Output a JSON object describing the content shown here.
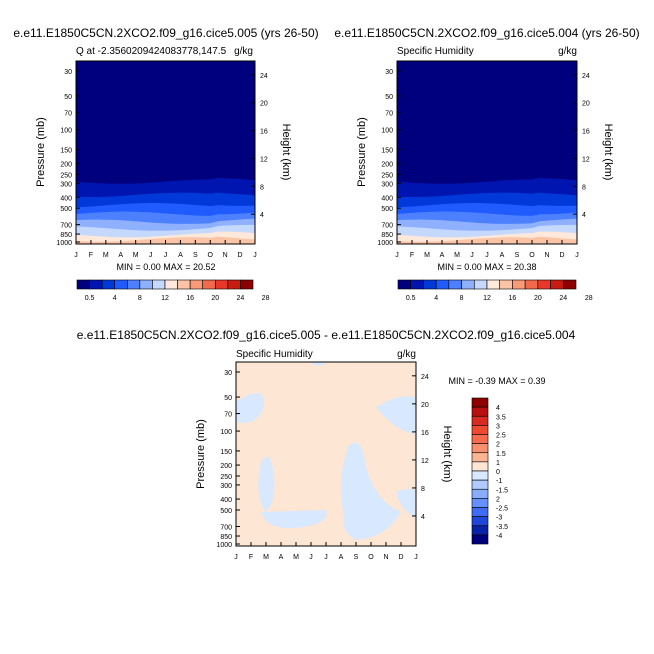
{
  "chart_data": [
    {
      "type": "heatmap",
      "title": "e.e11.E1850C5CN.2XCO2.f09_g16.cice5.005 (yrs 26-50)",
      "subtitle_left": "Q at -2.3560209424083778,147.5",
      "subtitle_right": "g/kg",
      "ylabel": "Pressure (mb)",
      "ylabel_right": "Height (km)",
      "x_categories": [
        "J",
        "F",
        "M",
        "A",
        "M",
        "J",
        "J",
        "A",
        "S",
        "O",
        "N",
        "D",
        "J"
      ],
      "pressure_ticks": [
        "30",
        "50",
        "70",
        "100",
        "150",
        "200",
        "250",
        "300",
        "400",
        "500",
        "700",
        "850",
        "1000"
      ],
      "height_ticks": [
        "24",
        "20",
        "16",
        "12",
        "8",
        "4"
      ],
      "stats": "MIN =   0.00 MAX =  20.52",
      "colorbar_labels": [
        "0.5",
        "4",
        "8",
        "12",
        "16",
        "20",
        "24",
        "28"
      ],
      "colorbar_colors": [
        "#00007f",
        "#0015b0",
        "#0038d9",
        "#1f5bff",
        "#4d80ff",
        "#8fb0ff",
        "#c5d8ff",
        "#fde8da",
        "#fbc4a6",
        "#f89a78",
        "#f26a4c",
        "#e8382a",
        "#c81c12",
        "#8c0000"
      ]
    },
    {
      "type": "heatmap",
      "title": "e.e11.E1850C5CN.2XCO2.f09_g16.cice5.004 (yrs 26-50)",
      "subtitle_left": "Specific Humidity",
      "subtitle_right": "g/kg",
      "ylabel": "Pressure (mb)",
      "ylabel_right": "Height (km)",
      "x_categories": [
        "J",
        "F",
        "M",
        "A",
        "M",
        "J",
        "J",
        "A",
        "S",
        "O",
        "N",
        "D",
        "J"
      ],
      "pressure_ticks": [
        "30",
        "50",
        "70",
        "100",
        "150",
        "200",
        "250",
        "300",
        "400",
        "500",
        "700",
        "850",
        "1000"
      ],
      "height_ticks": [
        "24",
        "20",
        "16",
        "12",
        "8",
        "4"
      ],
      "stats": "MIN =   0.00 MAX =  20.38",
      "colorbar_labels": [
        "0.5",
        "4",
        "8",
        "12",
        "16",
        "20",
        "24",
        "28"
      ],
      "colorbar_colors": [
        "#00007f",
        "#0015b0",
        "#0038d9",
        "#1f5bff",
        "#4d80ff",
        "#8fb0ff",
        "#c5d8ff",
        "#fde8da",
        "#fbc4a6",
        "#f89a78",
        "#f26a4c",
        "#e8382a",
        "#c81c12",
        "#8c0000"
      ]
    },
    {
      "type": "heatmap",
      "title": "e.e11.E1850C5CN.2XCO2.f09_g16.cice5.005 - e.e11.E1850C5CN.2XCO2.f09_g16.cice5.004",
      "subtitle_left": "Specific Humidity",
      "subtitle_right": "g/kg",
      "ylabel": "Pressure (mb)",
      "ylabel_right": "Height (km)",
      "x_categories": [
        "J",
        "F",
        "M",
        "A",
        "M",
        "J",
        "J",
        "A",
        "S",
        "O",
        "N",
        "D",
        "J"
      ],
      "pressure_ticks": [
        "30",
        "50",
        "70",
        "100",
        "150",
        "200",
        "250",
        "300",
        "400",
        "500",
        "700",
        "850",
        "1000"
      ],
      "height_ticks": [
        "24",
        "20",
        "16",
        "12",
        "8",
        "4"
      ],
      "stats": "MIN =  -0.39 MAX =   0.39",
      "colorbar_labels": [
        "4",
        "3.5",
        "3",
        "2.5",
        "2",
        "1.5",
        "1",
        "0",
        "-1",
        "-1.5",
        "2",
        "-2.5",
        "-3",
        "-3.5",
        "-4"
      ],
      "colorbar_colors": [
        "#8c0000",
        "#b81010",
        "#d82a1e",
        "#ee4a30",
        "#f66c4c",
        "#f9906e",
        "#fbb494",
        "#fde6d4",
        "#d8e8ff",
        "#b0cbff",
        "#8aaeff",
        "#6690ff",
        "#3f6cf5",
        "#1e46d8",
        "#0a22a8",
        "#00007f"
      ]
    }
  ]
}
